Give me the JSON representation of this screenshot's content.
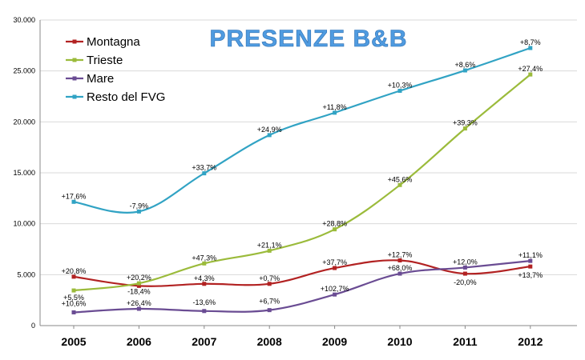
{
  "chart_data": {
    "type": "line",
    "title": "PRESENZE B&B",
    "x": [
      "2005",
      "2006",
      "2007",
      "2008",
      "2009",
      "2010",
      "2011",
      "2012"
    ],
    "ylim": [
      0,
      30000
    ],
    "yticks": [
      "0",
      "5.000",
      "10.000",
      "15.000",
      "20.000",
      "25.000",
      "30.000"
    ],
    "ytick_values": [
      0,
      5000,
      10000,
      15000,
      20000,
      25000,
      30000
    ],
    "grid": true,
    "legend_position": "top-left",
    "series": [
      {
        "name": "Montagna",
        "color": "#B22222",
        "values": [
          4800,
          3900,
          4100,
          4100,
          5650,
          6400,
          5100,
          5800
        ],
        "labels": [
          "+20,8%",
          "-18,4%",
          "+4,3%",
          "+0,7%",
          "+37,7%",
          "+12,7%",
          "-20,0%",
          "+13,7%"
        ]
      },
      {
        "name": "Trieste",
        "color": "#9BBB3B",
        "values": [
          3450,
          4150,
          6100,
          7350,
          9450,
          13800,
          19350,
          24650
        ],
        "labels": [
          "+5,5%",
          "+20,2%",
          "+47,3%",
          "+21,1%",
          "+28,8%",
          "+45,6%",
          "+39,3%",
          "+27,4%"
        ]
      },
      {
        "name": "Mare",
        "color": "#6A4C93",
        "values": [
          1300,
          1650,
          1430,
          1520,
          3050,
          5100,
          5700,
          6350
        ],
        "labels": [
          "+10,6%",
          "+26,4%",
          "-13,6%",
          "+6,7%",
          "+102,7%",
          "+68,0%",
          "+12,0%",
          "+11,1%"
        ]
      },
      {
        "name": "Resto del FVG",
        "color": "#31A3C4",
        "values": [
          12150,
          11200,
          14950,
          18700,
          20900,
          23050,
          25050,
          27250
        ],
        "labels": [
          "+17,6%",
          "-7,9%",
          "+33,7%",
          "+24,9%",
          "+11,8%",
          "+10,3%",
          "+8,6%",
          "+8,7%"
        ]
      }
    ]
  }
}
